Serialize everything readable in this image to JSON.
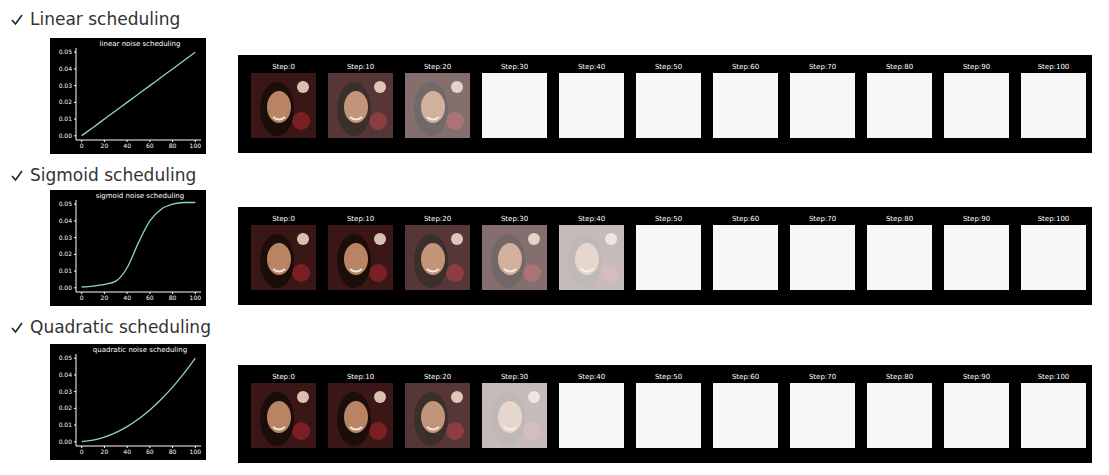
{
  "chart_data": [
    {
      "type": "line",
      "title": "linear noise scheduling",
      "x": [
        0,
        10,
        20,
        30,
        40,
        50,
        60,
        70,
        80,
        90,
        100
      ],
      "values": [
        0.0001,
        0.005,
        0.01,
        0.015,
        0.02,
        0.025,
        0.03,
        0.035,
        0.04,
        0.045,
        0.05
      ],
      "color": "#8fd3cf",
      "xlim": [
        -5,
        105
      ],
      "xticks": [
        0,
        20,
        40,
        60,
        80,
        100
      ],
      "ylim": [
        -0.0025,
        0.0525
      ],
      "yticks": [
        {
          "value": 0,
          "label": "0.00"
        },
        {
          "value": 0.01,
          "label": "0.01"
        },
        {
          "value": 0.02,
          "label": "0.02"
        },
        {
          "value": 0.03,
          "label": "0.03"
        },
        {
          "value": 0.04,
          "label": "0.04"
        },
        {
          "value": 0.05,
          "label": "0.05"
        }
      ],
      "grid": false
    },
    {
      "type": "line",
      "title": "sigmoid noise scheduling",
      "x": [
        0,
        10,
        20,
        30,
        40,
        50,
        60,
        70,
        80,
        90,
        100
      ],
      "values": [
        0.0005,
        0.001,
        0.002,
        0.004,
        0.012,
        0.027,
        0.04,
        0.047,
        0.05,
        0.051,
        0.051
      ],
      "color": "#8fd3cf",
      "xlim": [
        -5,
        105
      ],
      "xticks": [
        0,
        20,
        40,
        60,
        80,
        100
      ],
      "ylim": [
        -0.0025,
        0.0525
      ],
      "yticks": [
        {
          "value": 0,
          "label": "0.00"
        },
        {
          "value": 0.01,
          "label": "0.01"
        },
        {
          "value": 0.02,
          "label": "0.02"
        },
        {
          "value": 0.03,
          "label": "0.03"
        },
        {
          "value": 0.04,
          "label": "0.04"
        },
        {
          "value": 0.05,
          "label": "0.05"
        }
      ],
      "grid": false
    },
    {
      "type": "line",
      "title": "quadratic noise scheduling",
      "x": [
        0,
        10,
        20,
        30,
        40,
        50,
        60,
        70,
        80,
        90,
        100
      ],
      "values": [
        0.0001,
        0.00098,
        0.00278,
        0.00549,
        0.00911,
        0.01364,
        0.01909,
        0.02545,
        0.03272,
        0.0409,
        0.05
      ],
      "color": "#8fd3cf",
      "xlim": [
        -5,
        105
      ],
      "xticks": [
        0,
        20,
        40,
        60,
        80,
        100
      ],
      "ylim": [
        -0.0025,
        0.0525
      ],
      "yticks": [
        {
          "value": 0,
          "label": "0.00"
        },
        {
          "value": 0.01,
          "label": "0.01"
        },
        {
          "value": 0.02,
          "label": "0.02"
        },
        {
          "value": 0.03,
          "label": "0.03"
        },
        {
          "value": 0.04,
          "label": "0.04"
        },
        {
          "value": 0.05,
          "label": "0.05"
        }
      ],
      "grid": false
    }
  ],
  "sections": [
    {
      "heading": "Linear scheduling",
      "steps": [
        "Step:0",
        "Step:10",
        "Step:20",
        "Step:30",
        "Step:40",
        "Step:50",
        "Step:60",
        "Step:70",
        "Step:80",
        "Step:90",
        "Step:100"
      ]
    },
    {
      "heading": "Sigmoid scheduling",
      "steps": [
        "Step:0",
        "Step:10",
        "Step:20",
        "Step:30",
        "Step:40",
        "Step:50",
        "Step:60",
        "Step:70",
        "Step:80",
        "Step:90",
        "Step:100"
      ]
    },
    {
      "heading": "Quadratic scheduling",
      "steps": [
        "Step:0",
        "Step:10",
        "Step:20",
        "Step:30",
        "Step:40",
        "Step:50",
        "Step:60",
        "Step:70",
        "Step:80",
        "Step:90",
        "Step:100"
      ]
    }
  ]
}
